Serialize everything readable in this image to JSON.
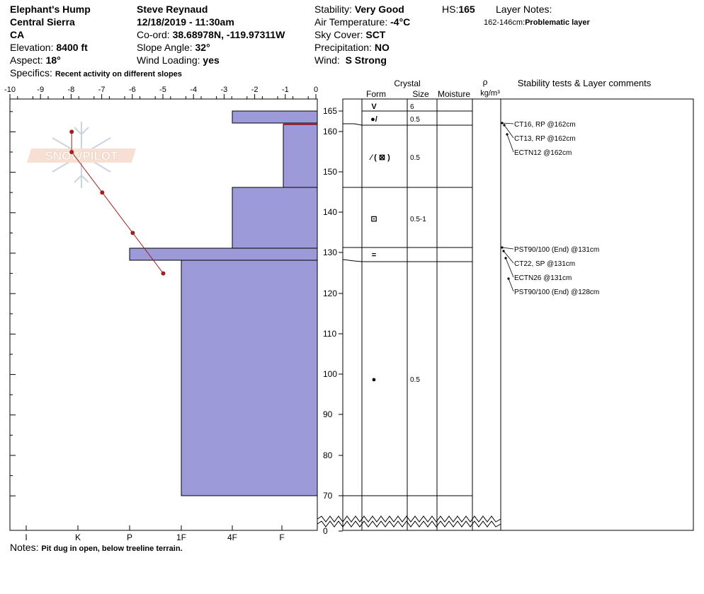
{
  "header": {
    "location": "Elephant's Hump",
    "range": "Central Sierra",
    "state": "CA",
    "elevation_label": "Elevation:",
    "elevation": "8400 ft",
    "aspect_label": "Aspect:",
    "aspect": "18°",
    "observer": "Steve Reynaud",
    "datetime": "12/18/2019 - 11:30am",
    "coord_label": "Co-ord:",
    "coord": "38.68978N, -119.97311W",
    "slope_label": "Slope Angle:",
    "slope": "32°",
    "wind_loading_label": "Wind Loading:",
    "wind_loading": "yes",
    "stability_label": "Stability:",
    "stability": "Very Good",
    "air_temp_label": "Air Temperature:",
    "air_temp": "-4°C",
    "sky_label": "Sky Cover:",
    "sky": "SCT",
    "precip_label": "Precipitation:",
    "precip": "NO",
    "wind_label": "Wind:",
    "wind": "S Strong",
    "hs_label": "HS:",
    "hs": "165",
    "layer_notes_label": "Layer Notes:",
    "layer_note_range": "162-146cm:",
    "layer_note_text": "Problematic layer",
    "specifics_label": "Specifics:",
    "specifics": "Recent activity on different slopes",
    "notes_label": "Notes:",
    "notes": "Pit dug in open, below treeline terrain."
  },
  "watermark": "SNOWPILOT",
  "chart_data": {
    "type": "snow_profile",
    "temperature_axis": {
      "ticks": [
        "-10",
        "-9",
        "-8",
        "-7",
        "-6",
        "-5",
        "-4",
        "-3",
        "-2",
        "-1",
        "0"
      ],
      "range": [
        -10,
        0
      ]
    },
    "hardness_axis": {
      "ticks": [
        "I",
        "K",
        "P",
        "1F",
        "4F",
        "F"
      ]
    },
    "depth_axis": {
      "ticks": [
        "165",
        "160",
        "150",
        "140",
        "130",
        "120",
        "110",
        "100",
        "90",
        "80",
        "70",
        "0"
      ]
    },
    "temperature_profile": [
      {
        "depth": 160,
        "temp": -8
      },
      {
        "depth": 155,
        "temp": -8
      },
      {
        "depth": 145,
        "temp": -7
      },
      {
        "depth": 135,
        "temp": -6
      },
      {
        "depth": 125,
        "temp": -5
      }
    ],
    "layers": [
      {
        "top": 165,
        "bottom": 162,
        "hardness": "4F+",
        "form": "^",
        "size": "6"
      },
      {
        "top": 162,
        "bottom": 146,
        "hardness": "F",
        "form": "ice/mixed",
        "size": "0.5"
      },
      {
        "top": 146,
        "bottom": 131,
        "hardness": "4F",
        "form": "FC",
        "size": "0.5-1"
      },
      {
        "top": 131,
        "bottom": 128,
        "hardness": "P+",
        "form": "=",
        "size": ""
      },
      {
        "top": 128,
        "bottom": 70,
        "hardness": "1F-",
        "form": "RG",
        "size": "0.5"
      }
    ],
    "crystal_headers": {
      "crystal": "Crystal",
      "form": "Form",
      "size": "Size",
      "moisture": "Moisture",
      "density": "ρ",
      "density_unit": "kg/m³",
      "tests": "Stability tests & Layer comments"
    },
    "crystal_rows": [
      {
        "symbol": "V",
        "size": "6"
      },
      {
        "symbol": "●/",
        "size": "0.5"
      },
      {
        "symbol": "⁄ ( ⊠ )",
        "size": "0.5"
      },
      {
        "symbol": "⊡",
        "size": "0.5-1"
      },
      {
        "symbol": "=",
        "size": ""
      },
      {
        "symbol": "●",
        "size": "0.5"
      }
    ],
    "stability_tests": [
      "CT16, RP @162cm",
      "CT13, RP @162cm",
      "ECTN12 @162cm",
      "PST90/100 (End) @131cm",
      "CT22, SP @131cm",
      "ECTN26 @131cm",
      "PST90/100 (End) @128cm"
    ],
    "colors": {
      "layer_fill": "#9c9ad8",
      "temp_line": "#a02020",
      "red_marker": "#c00000"
    }
  }
}
